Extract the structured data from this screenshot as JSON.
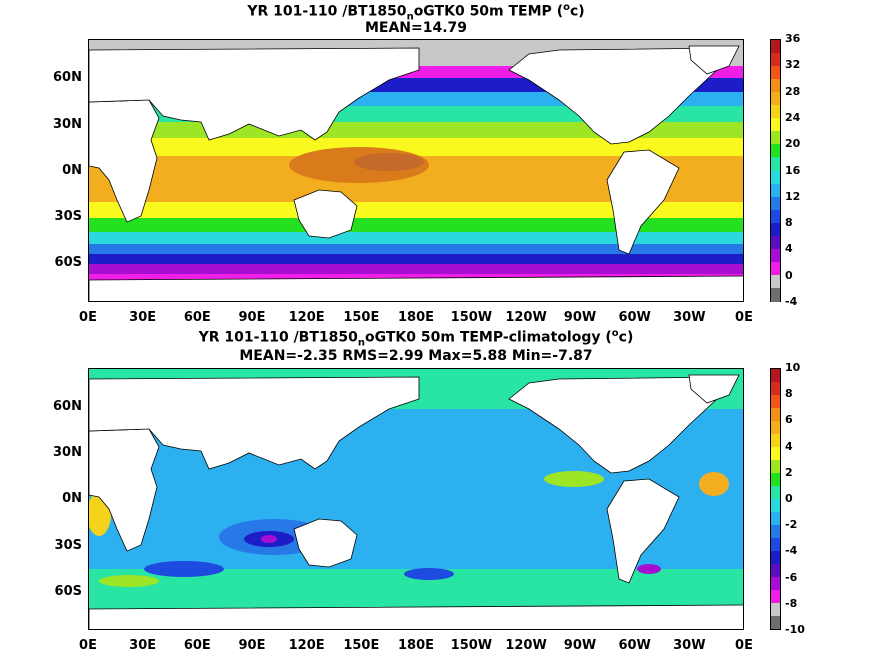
{
  "panels": [
    {
      "title_line1_pre": "YR 101-110 /BT1850",
      "title_line1_sub": "n",
      "title_line1_post": "oGTK0 50m TEMP (",
      "title_line1_sup": "o",
      "title_line1_end": "c)",
      "title_line2": "MEAN=14.79",
      "colorbar_labels": [
        "36",
        "32",
        "28",
        "24",
        "20",
        "16",
        "12",
        "8",
        "4",
        "0",
        "-4"
      ],
      "colorbar_colors": [
        "#b2181f",
        "#d42d20",
        "#f0561a",
        "#f28f1b",
        "#f2ae1e",
        "#f5d31c",
        "#f9f81f",
        "#9de626",
        "#25e021",
        "#29e5a3",
        "#2ad9de",
        "#2cb0f0",
        "#2779e8",
        "#1d4be0",
        "#1d1dc7",
        "#5b0fc0",
        "#a60fd1",
        "#f01fe8",
        "#c8c8c8",
        "#6e6e6e"
      ]
    },
    {
      "title_line1_pre": "YR 101-110 /BT1850",
      "title_line1_sub": "n",
      "title_line1_post": "oGTK0 50m TEMP-climatology (",
      "title_line1_sup": "o",
      "title_line1_end": "c)",
      "title_line2": "MEAN=-2.35   RMS=2.99   Max=5.88   Min=-7.87",
      "colorbar_labels": [
        "10",
        "8",
        "6",
        "4",
        "2",
        "0",
        "-2",
        "-4",
        "-6",
        "-8",
        "-10"
      ],
      "colorbar_colors": [
        "#b2181f",
        "#d42d20",
        "#f0561a",
        "#f28f1b",
        "#f2ae1e",
        "#f5d31c",
        "#f9f81f",
        "#9de626",
        "#25e021",
        "#29e5a3",
        "#2ad9de",
        "#2cb0f0",
        "#2779e8",
        "#1d4be0",
        "#1d1dc7",
        "#5b0fc0",
        "#a60fd1",
        "#f01fe8",
        "#c8c8c8",
        "#6e6e6e"
      ]
    }
  ],
  "lat_labels": [
    "60N",
    "30N",
    "0N",
    "30S",
    "60S"
  ],
  "lon_labels": [
    "0E",
    "30E",
    "60E",
    "90E",
    "120E",
    "150E",
    "180E",
    "150W",
    "120W",
    "90W",
    "60W",
    "30W",
    "0E"
  ]
}
